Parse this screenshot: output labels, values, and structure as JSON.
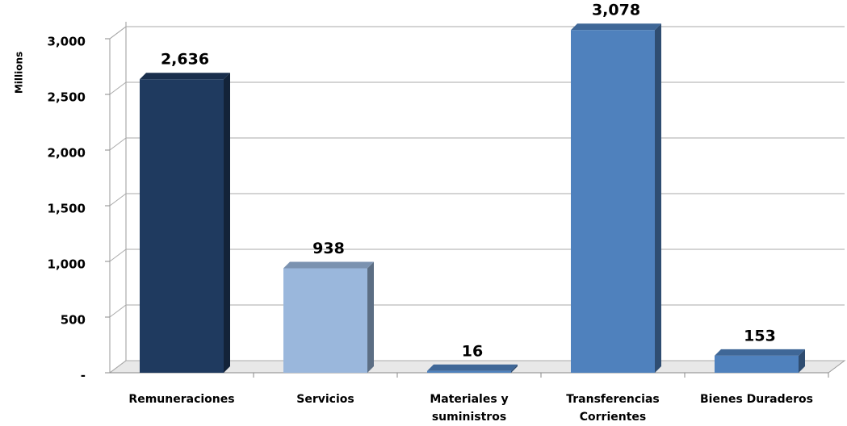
{
  "chart_data": {
    "type": "bar3d",
    "y_axis_label": "Millions",
    "categories": [
      "Remuneraciones",
      "Servicios",
      "Materiales y suministros",
      "Transferencias Corrientes",
      "Bienes Duraderos"
    ],
    "values": [
      2636,
      938,
      16,
      3078,
      153
    ],
    "value_labels": [
      "2,636",
      "938",
      "16",
      "3,078",
      "153"
    ],
    "colors": [
      "#1f3a5f",
      "#9ab7dc",
      "#4f81bd",
      "#4f81bd",
      "#4f81bd"
    ],
    "ylim": [
      0,
      3000
    ],
    "yticks": [
      {
        "value": 0,
        "label": "-"
      },
      500,
      {
        "value": 1000,
        "label": "1,000"
      },
      {
        "value": 1500,
        "label": "1,500"
      },
      {
        "value": 2000,
        "label": "2,000"
      },
      {
        "value": 2500,
        "label": "2,500"
      },
      {
        "value": 3000,
        "label": "3,000"
      }
    ],
    "grid": true
  }
}
